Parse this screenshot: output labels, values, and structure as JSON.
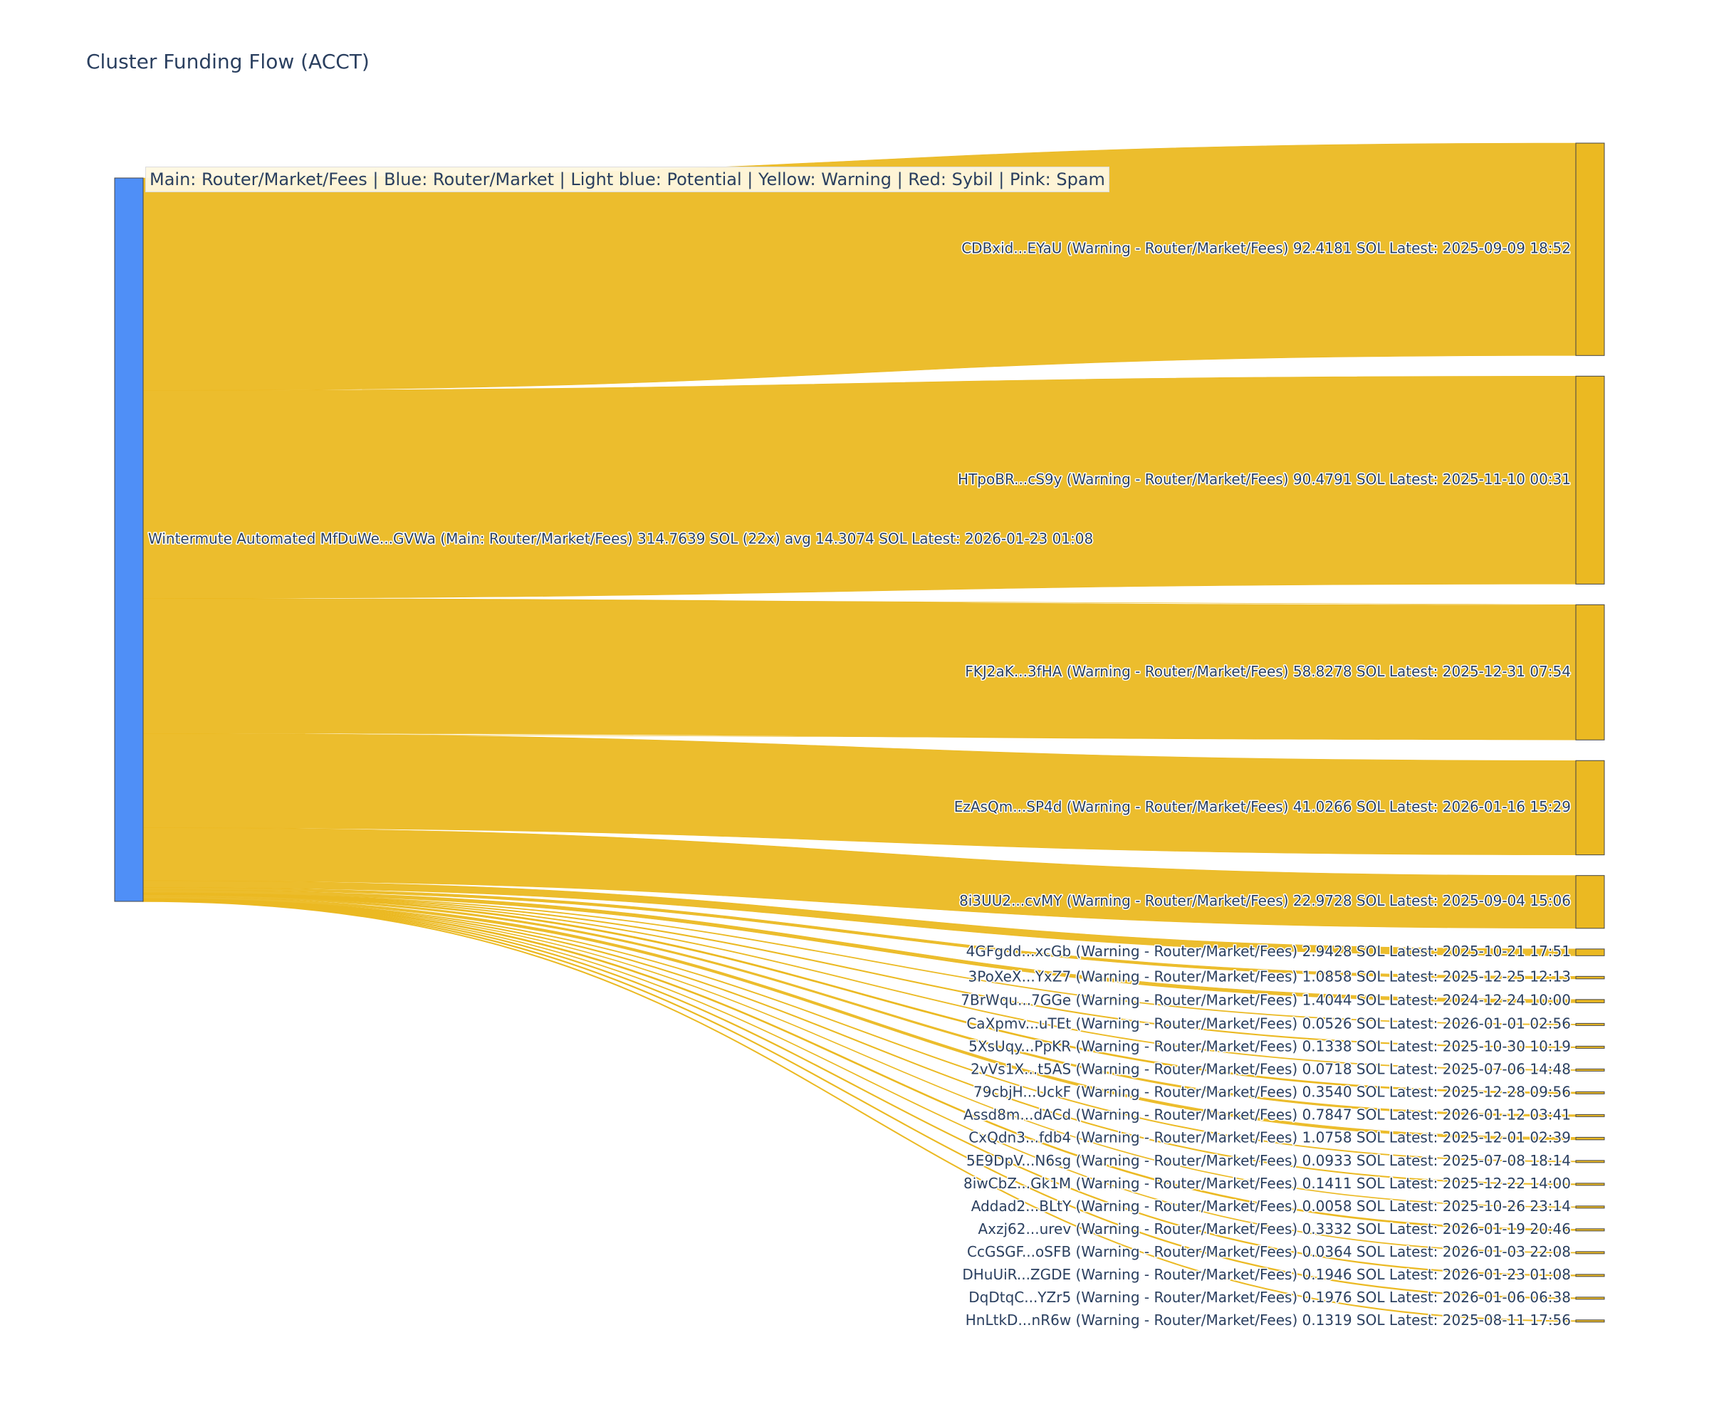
{
  "title": "Cluster Funding Flow (ACCT)",
  "legend": "Main: Router/Market/Fees  |  Blue: Router/Market | Light blue: Potential | Yellow: Warning | Red: Sybil | Pink: Spam",
  "colors": {
    "source_node": "#4f8ff7",
    "target_node": "#ebb922",
    "link": "#ebb922",
    "node_border": "#444444",
    "text": "#2a3f5f"
  },
  "chart_data": {
    "type": "sankey",
    "source": {
      "label": "Wintermute Automated MfDuWe...GVWa (Main: Router/Market/Fees) 314.7639 SOL (22x) avg 14.3074 SOL Latest: 2026-01-23 01:08",
      "value": 314.7639
    },
    "targets": [
      {
        "label": "CDBxid...EYaU (Warning - Router/Market/Fees) 92.4181 SOL Latest: 2025-09-09 18:52",
        "value": 92.4181
      },
      {
        "label": "HTpoBR...cS9y (Warning - Router/Market/Fees) 90.4791 SOL Latest: 2025-11-10 00:31",
        "value": 90.4791
      },
      {
        "label": "FKJ2aK...3fHA (Warning - Router/Market/Fees) 58.8278 SOL Latest: 2025-12-31 07:54",
        "value": 58.8278
      },
      {
        "label": "EzAsQm...SP4d (Warning - Router/Market/Fees) 41.0266 SOL Latest: 2026-01-16 15:29",
        "value": 41.0266
      },
      {
        "label": "8i3UU2...cvMY (Warning - Router/Market/Fees) 22.9728 SOL Latest: 2025-09-04 15:06",
        "value": 22.9728
      },
      {
        "label": "4GFgdd...xcGb (Warning - Router/Market/Fees) 2.9428 SOL Latest: 2025-10-21 17:51",
        "value": 2.9428
      },
      {
        "label": "3PoXeX...YxZ7 (Warning - Router/Market/Fees) 1.0858 SOL Latest: 2025-12-25 12:13",
        "value": 1.0858
      },
      {
        "label": "7BrWqu...7GGe (Warning - Router/Market/Fees) 1.4044 SOL Latest: 2024-12-24 10:00",
        "value": 1.4044
      },
      {
        "label": "CaXpmv...uTEt (Warning - Router/Market/Fees) 0.0526 SOL Latest: 2026-01-01 02:56",
        "value": 0.0526
      },
      {
        "label": "5XsUqy...PpKR (Warning - Router/Market/Fees) 0.1338 SOL Latest: 2025-10-30 10:19",
        "value": 0.1338
      },
      {
        "label": "2vVs1X...t5AS (Warning - Router/Market/Fees) 0.0718 SOL Latest: 2025-07-06 14:48",
        "value": 0.0718
      },
      {
        "label": "79cbjH...UckF (Warning - Router/Market/Fees) 0.3540 SOL Latest: 2025-12-28 09:56",
        "value": 0.354
      },
      {
        "label": "Assd8m...dACd (Warning - Router/Market/Fees) 0.7847 SOL Latest: 2026-01-12 03:41",
        "value": 0.7847
      },
      {
        "label": "CxQdn3...fdb4 (Warning - Router/Market/Fees) 1.0758 SOL Latest: 2025-12-01 02:39",
        "value": 1.0758
      },
      {
        "label": "5E9DpV...N6sg (Warning - Router/Market/Fees) 0.0933 SOL Latest: 2025-07-08 18:14",
        "value": 0.0933
      },
      {
        "label": "8iwCbZ...Gk1M (Warning - Router/Market/Fees) 0.1411 SOL Latest: 2025-12-22 14:00",
        "value": 0.1411
      },
      {
        "label": "Addad2...BLtY (Warning - Router/Market/Fees) 0.0058 SOL Latest: 2025-10-26 23:14",
        "value": 0.0058
      },
      {
        "label": "Axzj62...urev (Warning - Router/Market/Fees) 0.3332 SOL Latest: 2026-01-19 20:46",
        "value": 0.3332
      },
      {
        "label": "CcGSGF...oSFB (Warning - Router/Market/Fees) 0.0364 SOL Latest: 2026-01-03 22:08",
        "value": 0.0364
      },
      {
        "label": "DHuUiR...ZGDE (Warning - Router/Market/Fees) 0.1946 SOL Latest: 2026-01-23 01:08",
        "value": 0.1946
      },
      {
        "label": "DqDtqC...YZr5 (Warning - Router/Market/Fees) 0.1976 SOL Latest: 2026-01-06 06:38",
        "value": 0.1976
      },
      {
        "label": "HnLtkD...nR6w (Warning - Router/Market/Fees) 0.1319 SOL Latest: 2025-08-11 17:56",
        "value": 0.1319
      }
    ]
  }
}
